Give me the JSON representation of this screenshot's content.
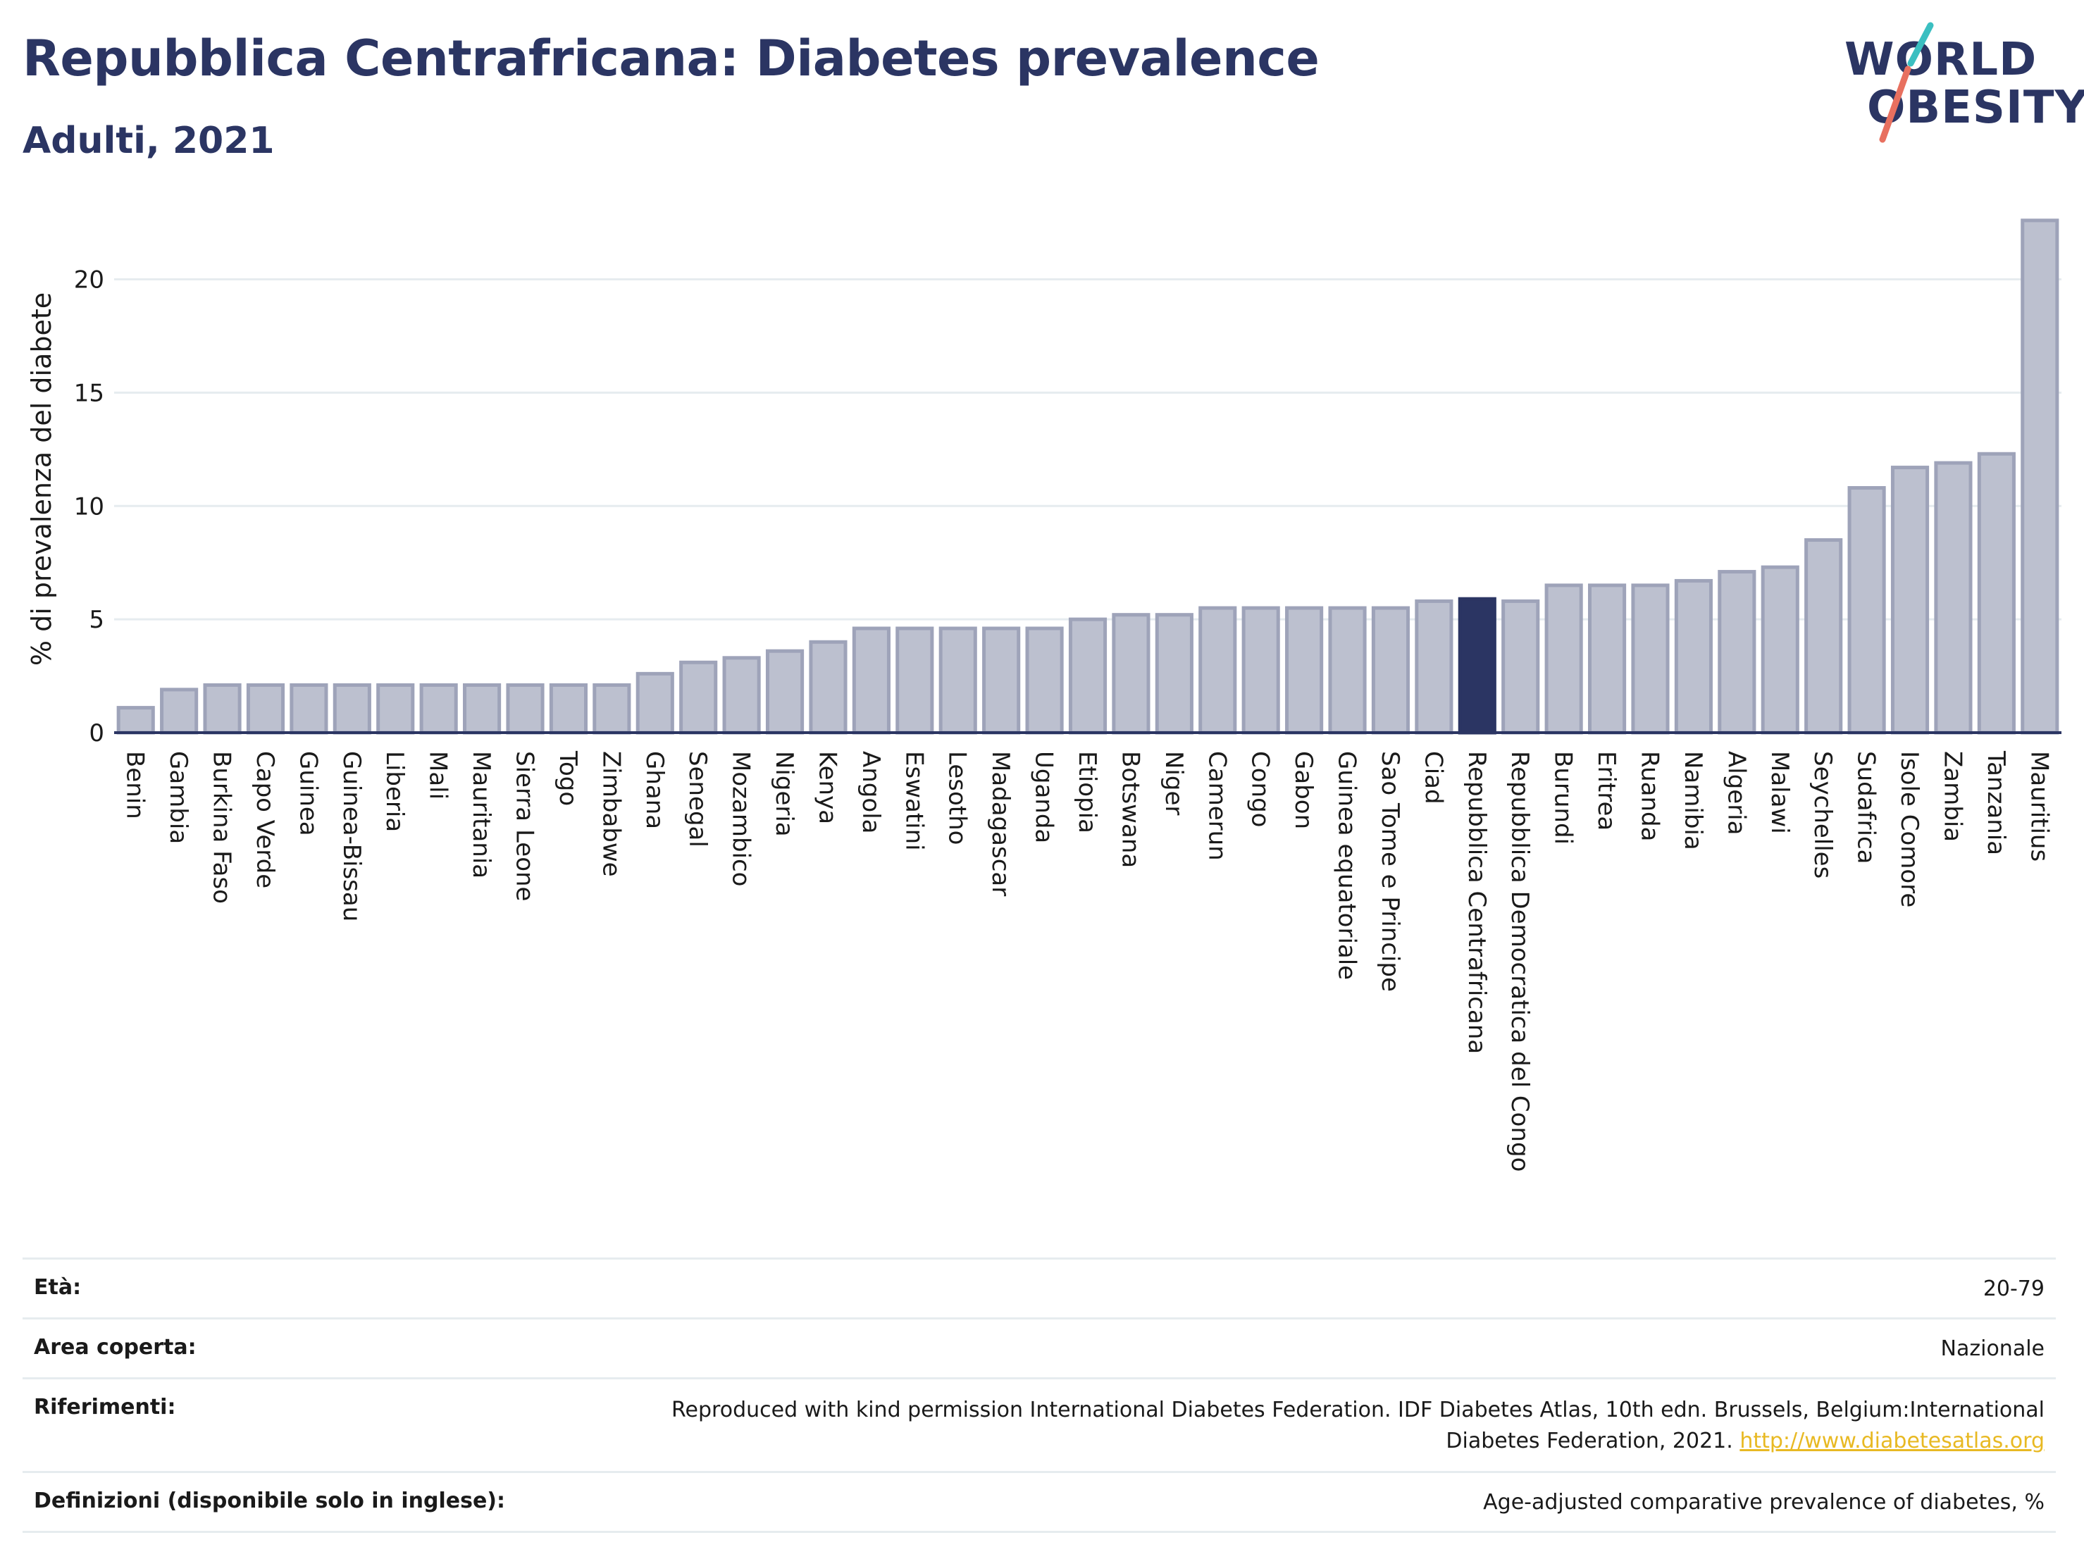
{
  "header": {
    "title": "Repubblica Centrafricana: Diabetes prevalence",
    "subtitle": "Adulti, 2021"
  },
  "logo": {
    "line1": "WORLD",
    "line2": "OBESITY",
    "colors": {
      "text": "#2b3563",
      "slash_teal": "#3bbfc1",
      "slash_coral": "#e8705f"
    }
  },
  "chart_data": {
    "type": "bar",
    "ylabel": "% di prevalenza del diabete",
    "xlabel": "",
    "ylim": [
      0,
      23
    ],
    "yticks": [
      0,
      5,
      10,
      15,
      20
    ],
    "grid": true,
    "highlight": "Repubblica Centrafricana",
    "colors": {
      "bar": "#bcc0cf",
      "bar_stroke": "#9ea3b9",
      "highlight": "#2b3563",
      "grid": "#e6ecef"
    },
    "categories": [
      "Benin",
      "Gambia",
      "Burkina Faso",
      "Capo Verde",
      "Guinea",
      "Guinea-Bissau",
      "Liberia",
      "Mali",
      "Mauritania",
      "Sierra Leone",
      "Togo",
      "Zimbabwe",
      "Ghana",
      "Senegal",
      "Mozambico",
      "Nigeria",
      "Kenya",
      "Angola",
      "Eswatini",
      "Lesotho",
      "Madagascar",
      "Uganda",
      "Etiopia",
      "Botswana",
      "Niger",
      "Camerun",
      "Congo",
      "Gabon",
      "Guinea equatoriale",
      "Sao Tome e Principe",
      "Ciad",
      "Repubblica Centrafricana",
      "Repubblica Democratica del Congo",
      "Burundi",
      "Eritrea",
      "Ruanda",
      "Namibia",
      "Algeria",
      "Malawi",
      "Seychelles",
      "Sudafrica",
      "Isole Comore",
      "Zambia",
      "Tanzania",
      "Mauritius"
    ],
    "values": [
      1.1,
      1.9,
      2.1,
      2.1,
      2.1,
      2.1,
      2.1,
      2.1,
      2.1,
      2.1,
      2.1,
      2.1,
      2.6,
      3.1,
      3.3,
      3.6,
      4.0,
      4.6,
      4.6,
      4.6,
      4.6,
      4.6,
      5.0,
      5.2,
      5.2,
      5.5,
      5.5,
      5.5,
      5.5,
      5.5,
      5.8,
      5.9,
      5.8,
      6.5,
      6.5,
      6.5,
      6.7,
      7.1,
      7.3,
      8.5,
      10.8,
      11.7,
      11.9,
      12.3,
      22.6
    ]
  },
  "meta": {
    "rows": [
      {
        "label": "Età:",
        "value": "20-79"
      },
      {
        "label": "Area coperta:",
        "value": "Nazionale"
      },
      {
        "label": "Riferimenti:",
        "value_line1": "Reproduced with kind permission International Diabetes Federation.  IDF Diabetes Atlas, 10th edn. Brussels, Belgium:International",
        "value_line2": "Diabetes Federation, 2021. ",
        "link": "http://www.diabetesatlas.org"
      },
      {
        "label": "Definizioni (disponibile solo in inglese):",
        "value": "Age-adjusted comparative prevalence of diabetes, %"
      }
    ]
  }
}
